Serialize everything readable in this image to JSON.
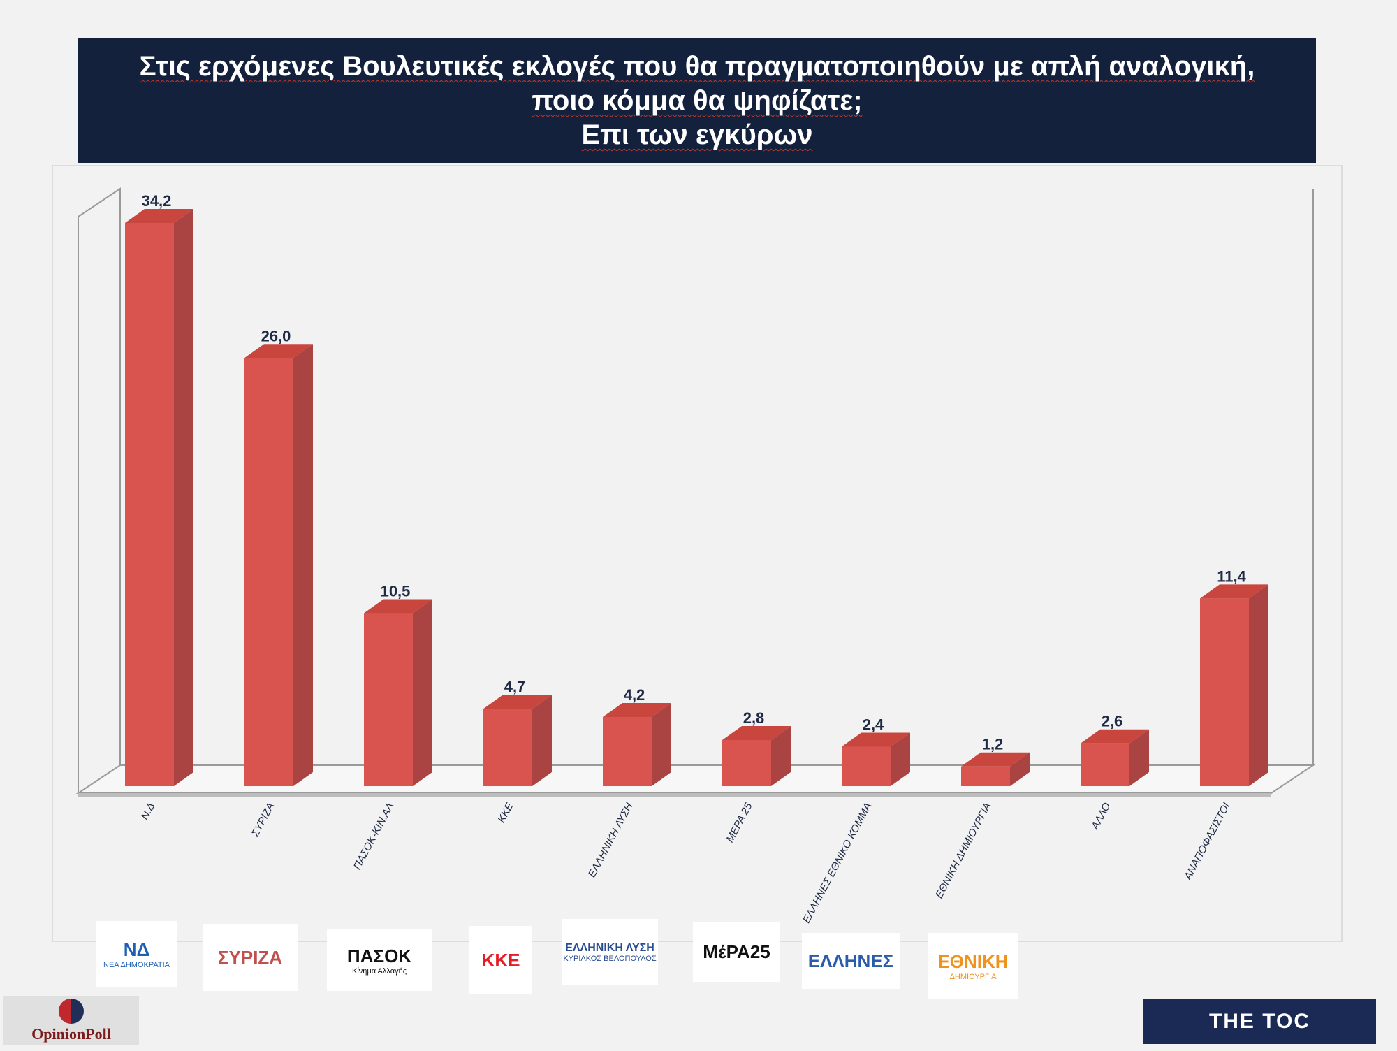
{
  "header": {
    "title_lines": [
      "Στις ερχόμενες Βουλευτικές εκλογές που θα πραγματοποιηθούν με απλή αναλογική,",
      "ποιο κόμμα θα ψηφίζατε;",
      "Επι των εγκύρων"
    ]
  },
  "chart_data": {
    "type": "bar",
    "style": "3d-column",
    "categories": [
      "Ν.Δ",
      "ΣΥΡΙΖΑ",
      "ΠΑΣΟΚ-ΚΙΝ.ΑΛ",
      "ΚΚΕ",
      "ΕΛΛΗΝΙΚΗ ΛΥΣΗ",
      "ΜΕΡΑ 25",
      "ΕΛΛΗΝΕΣ ΕΘΝΙΚΟ ΚΟΜΜΑ",
      "ΕΘΝΙΚΗ ΔΗΜΙΟΥΡΓΙΑ",
      "ΑΛΛΟ",
      "ΑΝΑΠΟΦΑΣΙΣΤΟΙ"
    ],
    "values": [
      34.2,
      26.0,
      10.5,
      4.7,
      4.2,
      2.8,
      2.4,
      1.2,
      2.6,
      11.4
    ],
    "data_labels": [
      "34,2",
      "26,0",
      "10,5",
      "4,7",
      "4,2",
      "2,8",
      "2,4",
      "1,2",
      "2,6",
      "11,4"
    ],
    "ylim": [
      0,
      35
    ],
    "grid": false,
    "bar_color": "#d9534f",
    "bar_side_color": "#a94442",
    "bar_top_color": "#c9463f"
  },
  "logos": [
    {
      "name": "nd-logo",
      "text": "ΝΔ",
      "sub": "ΝΕΑ ΔΗΜΟΚΡΑΤΙΑ",
      "color": "#1f5fb4"
    },
    {
      "name": "syriza-logo",
      "text": "ΣΥΡΙΖΑ",
      "sub": "",
      "color": "#c0504d"
    },
    {
      "name": "pasok-logo",
      "text": "ΠΑΣΟΚ",
      "sub": "Κίνημα Αλλαγής",
      "color": "#111111"
    },
    {
      "name": "kke-logo",
      "text": "ΚΚΕ",
      "sub": "",
      "color": "#e31e24"
    },
    {
      "name": "elliniki-lysi-logo",
      "text": "ΕΛΛΗΝΙΚΗ ΛΥΣΗ",
      "sub": "ΚΥΡΙΑΚΟΣ ΒΕΛΟΠΟΥΛΟΣ",
      "color": "#2a4d8f"
    },
    {
      "name": "mera25-logo",
      "text": "ΜέΡΑ25",
      "sub": "",
      "color": "#111111"
    },
    {
      "name": "ellines-logo",
      "text": "ΕΛΛΗΝΕΣ",
      "sub": "",
      "color": "#2a5caa"
    },
    {
      "name": "ethniki-dimiourgia-logo",
      "text": "ΕΘΝΙΚΗ",
      "sub": "ΔΗΜΙΟΥΡΓΙΑ",
      "color": "#f0931e"
    }
  ],
  "footer": {
    "left_brand": "OpinionPoll",
    "right_brand": "THE TOC"
  }
}
